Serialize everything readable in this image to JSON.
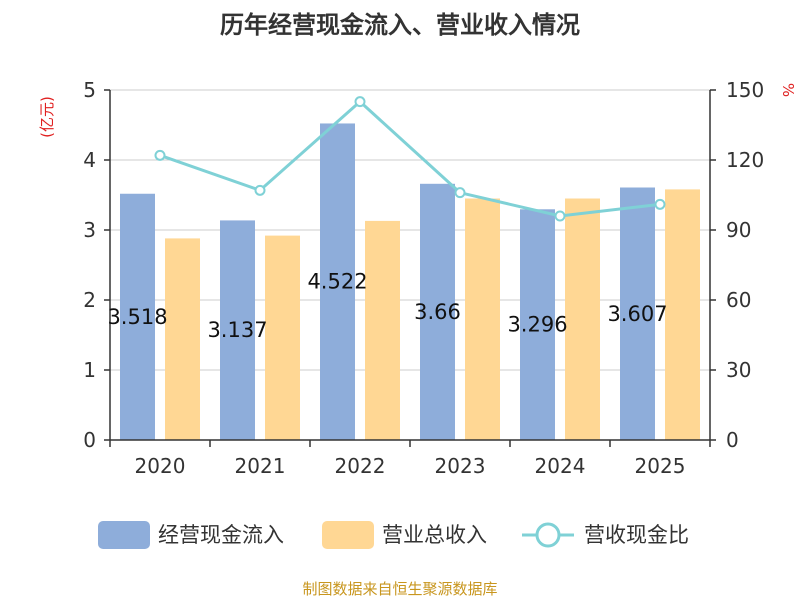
{
  "chart_data": {
    "type": "bar",
    "title": "历年经营现金流入、营业收入情况",
    "categories": [
      "2020",
      "2021",
      "2022",
      "2023",
      "2024",
      "2025"
    ],
    "left_axis": {
      "unit": "(亿元)",
      "ylim": [
        0,
        5
      ],
      "ticks": [
        "0",
        "1",
        "2",
        "3",
        "4",
        "5"
      ]
    },
    "right_axis": {
      "unit": "%",
      "ylim": [
        0,
        150
      ],
      "ticks": [
        "0",
        "30",
        "60",
        "90",
        "120",
        "150"
      ]
    },
    "series": [
      {
        "name": "经营现金流入",
        "kind": "bar",
        "axis": "left",
        "color": "#8eadda",
        "values": [
          3.518,
          3.137,
          4.522,
          3.66,
          3.296,
          3.607
        ],
        "labels": [
          "3.518",
          "3.137",
          "4.522",
          "3.66",
          "3.296",
          "3.607"
        ]
      },
      {
        "name": "营业总收入",
        "kind": "bar",
        "axis": "left",
        "color": "#ffd794",
        "values": [
          2.88,
          2.92,
          3.13,
          3.45,
          3.45,
          3.58
        ]
      },
      {
        "name": "营收现金比",
        "kind": "line",
        "axis": "right",
        "color": "#7fd1d6",
        "values": [
          122,
          107,
          145,
          106,
          96,
          101
        ]
      }
    ],
    "source": "制图数据来自恒生聚源数据库"
  }
}
